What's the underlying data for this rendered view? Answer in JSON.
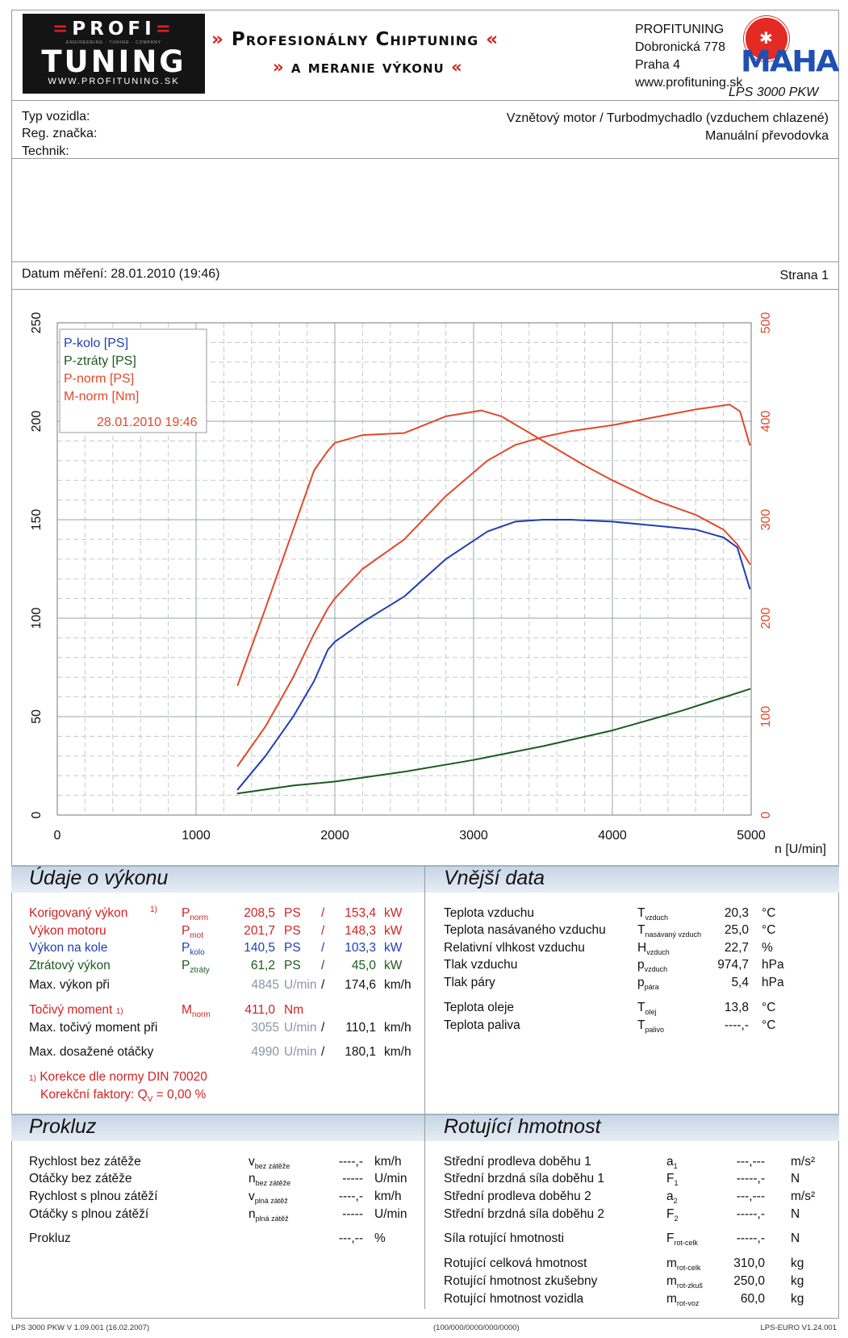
{
  "header": {
    "logo_top": "PROFI",
    "logo_subtitle": "ENGINEERING · TUNING · COMPANY",
    "logo_main": "TUNING",
    "logo_url": "WWW.PROFITUNING.SK",
    "slogan_line1": "Profesionálny Chiptuning",
    "slogan_line2": "a meranie výkonu",
    "slogan_arrow_left": "»",
    "slogan_arrow_right": "«",
    "company": "PROFITUNING",
    "street": "Dobronická 778",
    "city": "Praha 4",
    "website": "www.profituning.sk",
    "badge_text": "MAHA",
    "model": "LPS 3000 PKW"
  },
  "vehicle": {
    "typ_label": "Typ vozidla:",
    "reg_label": "Reg. značka:",
    "tech_label": "Technik:",
    "engine": "Vznětový motor / Turbodmychadlo (vzduchem chlazené)",
    "gearbox": "Manuální převodovka"
  },
  "measurement": {
    "date_label": "Datum měření: 28.01.2010 (19:46)",
    "page_label": "Strana 1"
  },
  "chart_data": {
    "type": "line",
    "x_unit_label": "n [U/min]",
    "x_ticks": [
      "0",
      "1000",
      "2000",
      "3000",
      "4000",
      "5000"
    ],
    "y_left_ticks": [
      "0",
      "50",
      "100",
      "150",
      "200",
      "250"
    ],
    "y_right_ticks": [
      "0",
      "100",
      "200",
      "300",
      "400",
      "500"
    ],
    "xlim": [
      0,
      5000
    ],
    "ylim_left": [
      0,
      250
    ],
    "ylim_right": [
      0,
      500
    ],
    "grid": true,
    "legend_position": "top-left",
    "legend_date": "28.01.2010 19:46",
    "series": [
      {
        "name": "P-kolo [PS]",
        "color": "#1f3fb0",
        "axis": "left",
        "x": [
          1300,
          1500,
          1700,
          1850,
          1950,
          2000,
          2200,
          2500,
          2800,
          3100,
          3300,
          3500,
          3700,
          4000,
          4300,
          4600,
          4800,
          4900,
          4990
        ],
        "y": [
          13,
          30,
          50,
          68,
          84,
          88,
          98,
          111,
          130,
          144,
          149,
          150,
          150,
          149,
          147,
          145,
          141,
          136,
          115
        ]
      },
      {
        "name": "P-ztráty [PS]",
        "color": "#1a5a20",
        "axis": "left",
        "x": [
          1300,
          1700,
          2000,
          2500,
          3000,
          3500,
          4000,
          4500,
          4990
        ],
        "y": [
          11,
          15,
          17,
          22,
          28,
          35,
          43,
          53,
          64
        ]
      },
      {
        "name": "P-norm [PS]",
        "color": "#e2492a",
        "axis": "left",
        "x": [
          1300,
          1500,
          1700,
          1850,
          1950,
          2000,
          2200,
          2500,
          2800,
          3100,
          3300,
          3500,
          3700,
          4000,
          4300,
          4600,
          4845,
          4920,
          4990
        ],
        "y": [
          25,
          45,
          70,
          92,
          105,
          110,
          125,
          140,
          162,
          180,
          188,
          192,
          195,
          198,
          202,
          206,
          208.5,
          205,
          188
        ]
      },
      {
        "name": "M-norm [Nm]",
        "color": "#e2492a",
        "axis": "right",
        "x": [
          1300,
          1500,
          1700,
          1850,
          1950,
          2000,
          2200,
          2500,
          2800,
          3055,
          3200,
          3500,
          3800,
          4000,
          4300,
          4600,
          4800,
          4900,
          4990
        ],
        "y": [
          132,
          210,
          290,
          350,
          370,
          378,
          386,
          388,
          405,
          411,
          405,
          380,
          355,
          340,
          320,
          305,
          290,
          275,
          255
        ]
      }
    ]
  },
  "perf": {
    "title": "Údaje o výkonu",
    "rows": [
      {
        "label": "Korigovaný výkon",
        "note": "1)",
        "sym": "P",
        "sub": "norm",
        "v1": "208,5",
        "u1": "PS",
        "sep": "/",
        "v2": "153,4",
        "u2": "kW"
      },
      {
        "label": "Výkon motoru",
        "note": "",
        "sym": "P",
        "sub": "mot",
        "v1": "201,7",
        "u1": "PS",
        "sep": "/",
        "v2": "148,3",
        "u2": "kW"
      },
      {
        "label": "Výkon na kole",
        "note": "",
        "sym": "P",
        "sub": "kolo",
        "v1": "140,5",
        "u1": "PS",
        "sep": "/",
        "v2": "103,3",
        "u2": "kW"
      },
      {
        "label": "Ztrátový výkon",
        "note": "",
        "sym": "P",
        "sub": "ztráty",
        "v1": "61,2",
        "u1": "PS",
        "sep": "/",
        "v2": "45,0",
        "u2": "kW"
      }
    ],
    "max_power_label": "Max. výkon při",
    "max_power_rpm": "4845",
    "max_power_unit": "U/min",
    "max_power_slash": "/",
    "max_power_speed": "174,6",
    "speed_unit": "km/h",
    "torque_label": "Točivý moment",
    "torque_note": "1)",
    "torque_sym": "M",
    "torque_sub": "norm",
    "torque_value": "411,0",
    "torque_unit": "Nm",
    "max_torque_label": "Max. točivý moment při",
    "max_torque_rpm": "3055",
    "max_torque_speed": "110,1",
    "max_rpm_label": "Max. dosažené otáčky",
    "max_rpm": "4990",
    "max_rpm_speed": "180,1",
    "corr_note": "1)",
    "corr_text": "Korekce dle normy DIN 70020",
    "corr_factor_label": "Korekční faktory: Q",
    "corr_factor_sub": "V",
    "corr_factor_value": "=   0,00 %"
  },
  "ext": {
    "title": "Vnější data",
    "rows": [
      {
        "label": "Teplota vzduchu",
        "sym": "T",
        "sub": "vzduch",
        "val": "20,3",
        "unit": "°C"
      },
      {
        "label": "Teplota nasávaného vzduchu",
        "sym": "T",
        "sub": "nasávaný vzduch",
        "val": "25,0",
        "unit": "°C"
      },
      {
        "label": "Relativní vlhkost vzduchu",
        "sym": "H",
        "sub": "vzduch",
        "val": "22,7",
        "unit": "%"
      },
      {
        "label": "Tlak vzduchu",
        "sym": "p",
        "sub": "vzduch",
        "val": "974,7",
        "unit": "hPa"
      },
      {
        "label": "Tlak páry",
        "sym": "p",
        "sub": "pára",
        "val": "5,4",
        "unit": "hPa"
      },
      {
        "label": "Teplota oleje",
        "sym": "T",
        "sub": "olej",
        "val": "13,8",
        "unit": "°C"
      },
      {
        "label": "Teplota paliva",
        "sym": "T",
        "sub": "palivo",
        "val": "----,-",
        "unit": "°C"
      }
    ]
  },
  "slip": {
    "title": "Prokluz",
    "rows": [
      {
        "label": "Rychlost bez zátěže",
        "sym": "v",
        "sub": "bez zátěže",
        "val": "----,-",
        "unit": "km/h"
      },
      {
        "label": "Otáčky bez zátěže",
        "sym": "n",
        "sub": "bez zátěže",
        "val": "-----",
        "unit": "U/min"
      },
      {
        "label": "Rychlost s plnou zátěží",
        "sym": "v",
        "sub": "plná zátěž",
        "val": "----,-",
        "unit": "km/h"
      },
      {
        "label": "Otáčky s plnou zátěží",
        "sym": "n",
        "sub": "plná zátěž",
        "val": "-----",
        "unit": "U/min"
      },
      {
        "label": "Prokluz",
        "sym": "",
        "sub": "",
        "val": "---,--",
        "unit": "%"
      }
    ]
  },
  "rot": {
    "title": "Rotující hmotnost",
    "rows": [
      {
        "label": "Střední prodleva doběhu 1",
        "sym": "a",
        "sub": "1",
        "val": "---,---",
        "unit": "m/s²"
      },
      {
        "label": "Střední brzdná síla doběhu 1",
        "sym": "F",
        "sub": "1",
        "val": "-----,-",
        "unit": "N"
      },
      {
        "label": "Střední prodleva doběhu 2",
        "sym": "a",
        "sub": "2",
        "val": "---,---",
        "unit": "m/s²"
      },
      {
        "label": "Střední brzdná síla doběhu 2",
        "sym": "F",
        "sub": "2",
        "val": "-----,-",
        "unit": "N"
      },
      {
        "label": "Síla rotující hmotnosti",
        "sym": "F",
        "sub": "rot-celk",
        "val": "-----,-",
        "unit": "N"
      },
      {
        "label": "Rotující celková hmotnost",
        "sym": "m",
        "sub": "rot-celk",
        "val": "310,0",
        "unit": "kg"
      },
      {
        "label": "Rotující hmotnost zkušebny",
        "sym": "m",
        "sub": "rot-zkuš",
        "val": "250,0",
        "unit": "kg"
      },
      {
        "label": "Rotující hmotnost vozidla",
        "sym": "m",
        "sub": "rot-voz",
        "val": "60,0",
        "unit": "kg"
      }
    ]
  },
  "footer": {
    "left": "LPS 3000 PKW V 1.09.001 (16.02.2007)",
    "center": "(100/000/0000/000/0000)",
    "right": "LPS-EURO V1.24.001"
  }
}
